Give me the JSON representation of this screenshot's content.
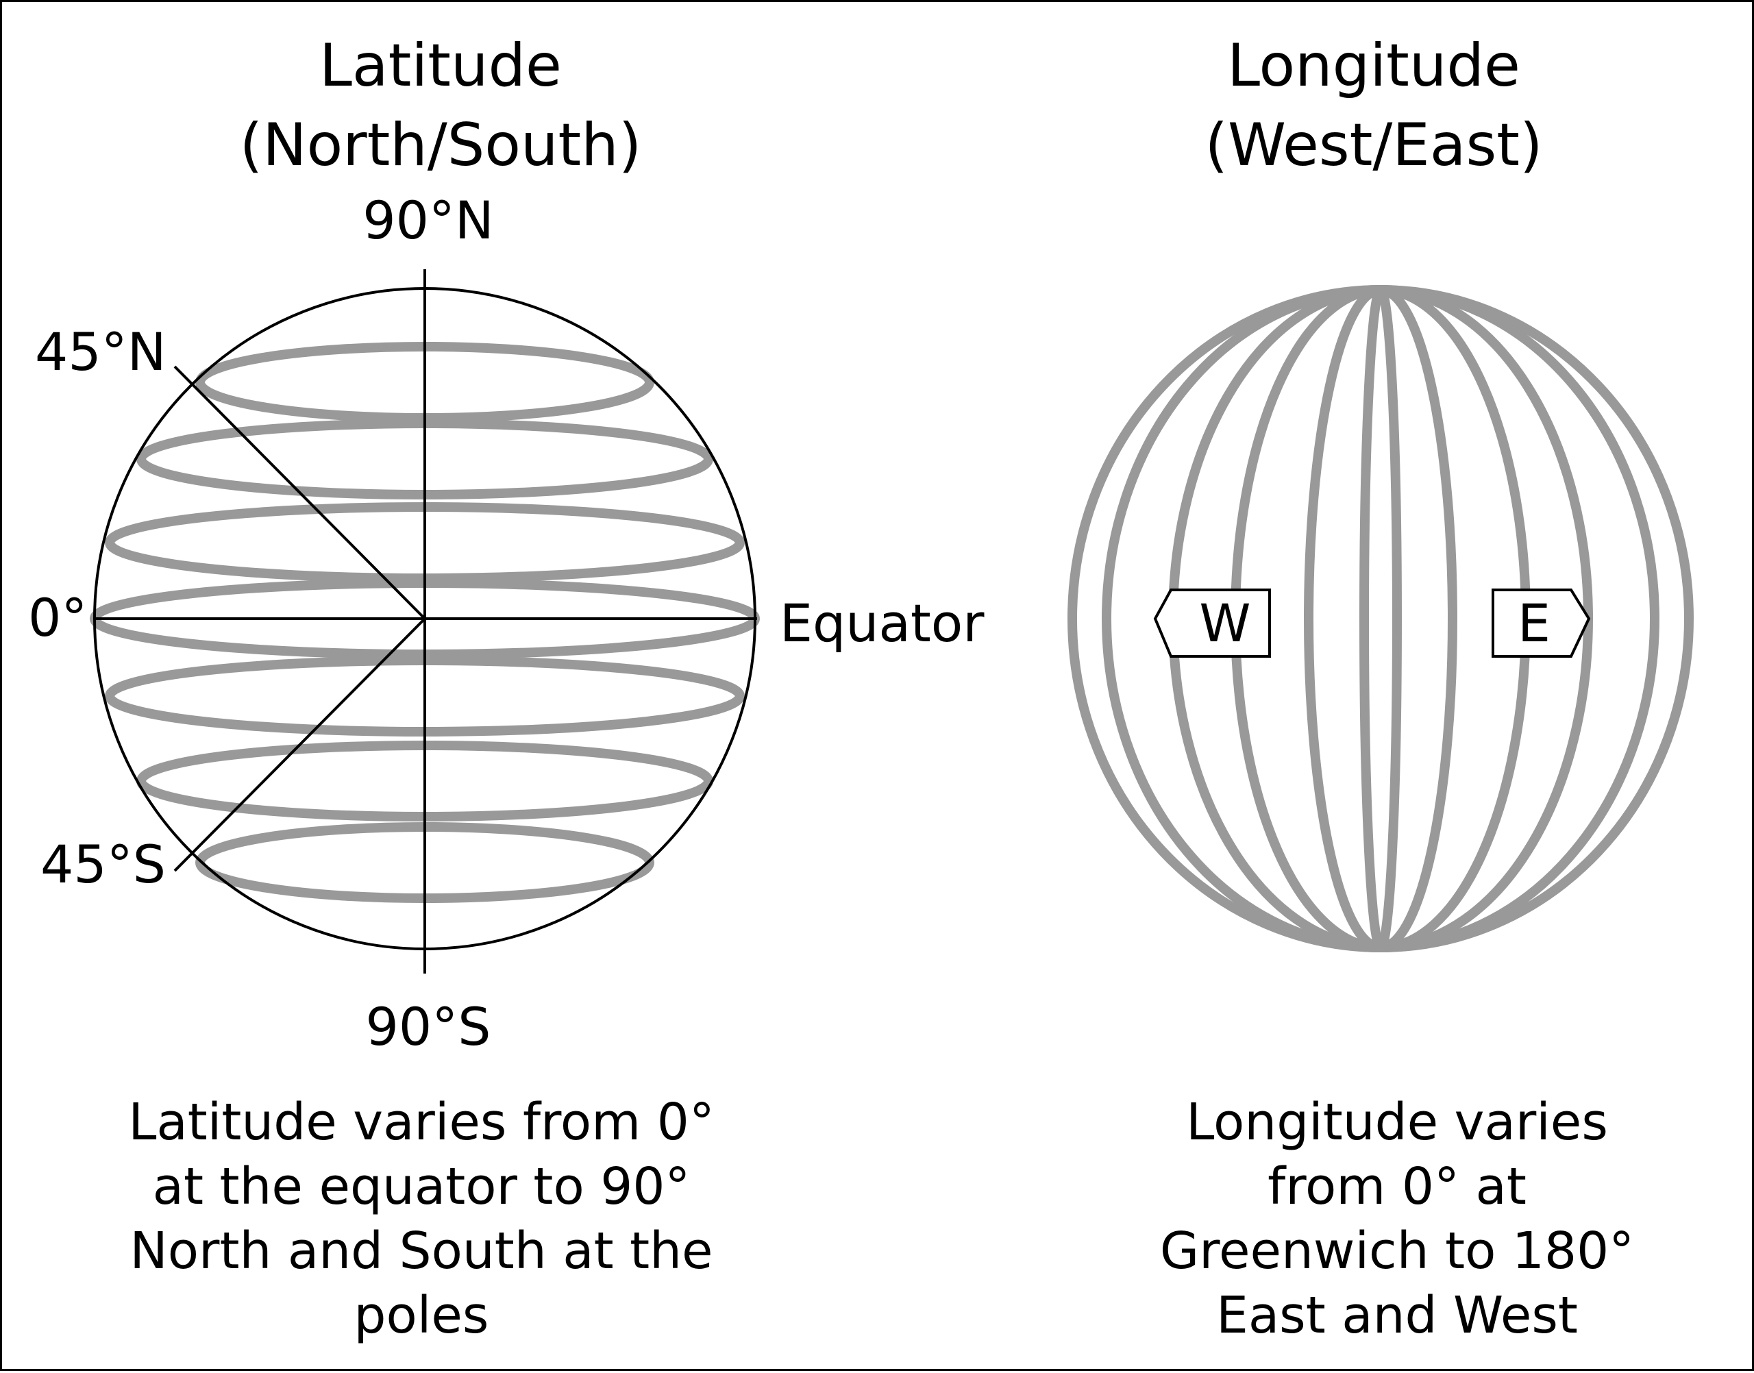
{
  "latitude": {
    "title_line1": "Latitude",
    "title_line2": "(North/South)",
    "label_north_pole": "90°N",
    "label_south_pole": "90°S",
    "label_45n": "45°N",
    "label_45s": "45°S",
    "label_zero": "0°",
    "label_equator": "Equator",
    "caption": [
      "Latitude varies from 0°",
      "at the equator to 90°",
      "North and South at the",
      "poles"
    ]
  },
  "longitude": {
    "title_line1": "Longitude",
    "title_line2": "(West/East)",
    "tag_west": "W",
    "tag_east": "E",
    "caption": [
      "Longitude varies",
      "from 0° at",
      "Greenwich to 180°",
      "East and West"
    ]
  },
  "colors": {
    "line_gray": "#999999",
    "line_black": "#000000",
    "background": "#ffffff"
  }
}
